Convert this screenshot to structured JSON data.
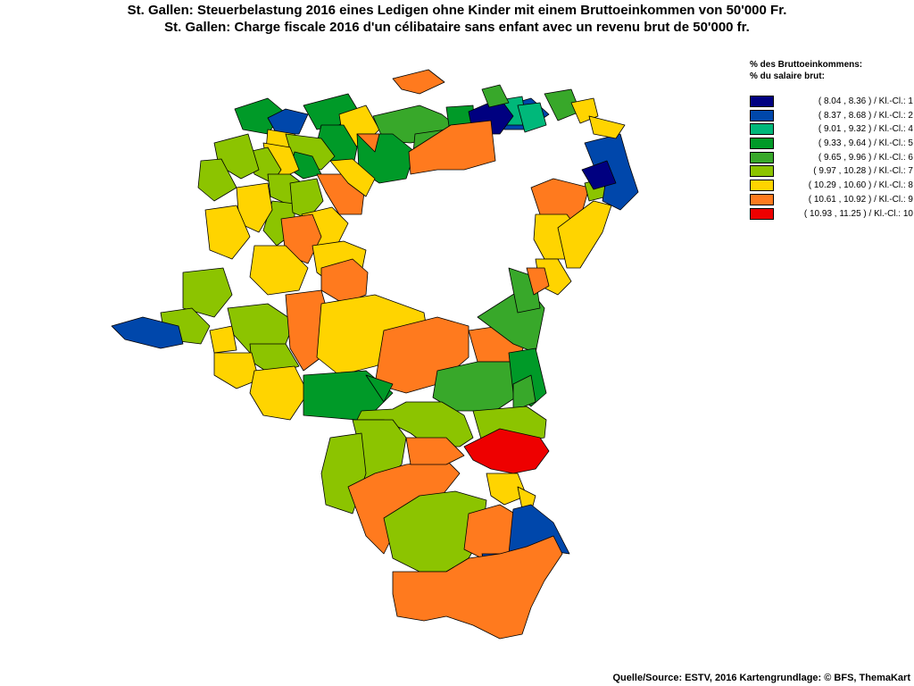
{
  "title_de": "St. Gallen: Steuerbelastung 2016 eines Ledigen ohne Kinder mit einem Bruttoeinkommen von 50'000 Fr.",
  "title_fr": "St. Gallen: Charge fiscale 2016 d'un célibataire sans enfant avec un revenu brut de 50'000 fr.",
  "legend": {
    "heading_de": "% des Bruttoeinkommens:",
    "heading_fr": "% du salaire brut:",
    "classes": [
      {
        "label": "( 8.04 , 8.36 ) / Kl.-Cl.: 1",
        "color": "#000080"
      },
      {
        "label": "( 8.37 , 8.68 ) / Kl.-Cl.: 2",
        "color": "#0047ab"
      },
      {
        "label": "( 9.01 , 9.32 ) / Kl.-Cl.: 4",
        "color": "#00b87a"
      },
      {
        "label": "( 9.33 , 9.64 ) / Kl.-Cl.: 5",
        "color": "#009a28"
      },
      {
        "label": "( 9.65 , 9.96 ) / Kl.-Cl.: 6",
        "color": "#38a82a"
      },
      {
        "label": "( 9.97 , 10.28 ) / Kl.-Cl.: 7",
        "color": "#8cc400"
      },
      {
        "label": "( 10.29 , 10.60 ) / Kl.-Cl.: 8",
        "color": "#ffd400"
      },
      {
        "label": "( 10.61 , 10.92 ) / Kl.-Cl.: 9",
        "color": "#ff7a1e"
      },
      {
        "label": "( 10.93 , 11.25 ) / Kl.-Cl.: 10",
        "color": "#ee0000"
      }
    ]
  },
  "source": "Quelle/Source: ESTV, 2016 Kartengrundlage: © BFS, ThemaKart"
}
